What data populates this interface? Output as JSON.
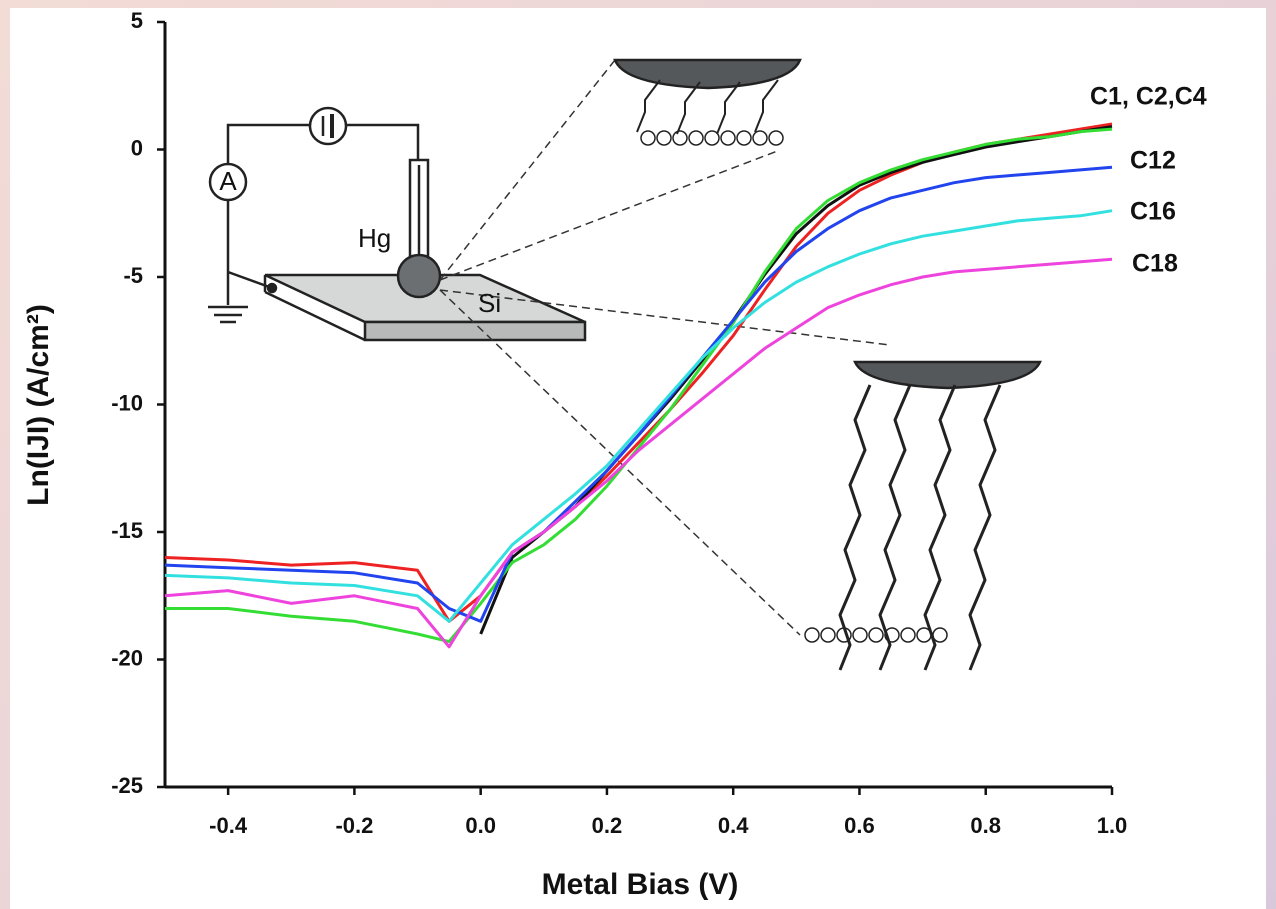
{
  "chart_data": {
    "type": "line",
    "x_label": "Metal Bias (V)",
    "y_label": "Ln(IJI) (A/cm²)",
    "x": [
      -0.5,
      -0.4,
      -0.3,
      -0.2,
      -0.1,
      -0.05,
      0,
      0.05,
      0.1,
      0.15,
      0.2,
      0.25,
      0.3,
      0.35,
      0.4,
      0.45,
      0.5,
      0.55,
      0.6,
      0.65,
      0.7,
      0.75,
      0.8,
      0.85,
      0.9,
      0.95,
      1.0
    ],
    "series": [
      {
        "color": "#ee2222",
        "values": [
          -16,
          -16.1,
          -16.3,
          -16.2,
          -16.5,
          -18.5,
          -17.5,
          -15.8,
          -15,
          -14,
          -12.8,
          -11.5,
          -10.2,
          -8.8,
          -7.3,
          -5.5,
          -3.8,
          -2.5,
          -1.6,
          -1,
          -0.5,
          -0.1,
          0.2,
          0.4,
          0.6,
          0.8,
          1.0
        ]
      },
      {
        "color": "#111111",
        "values": [
          null,
          null,
          null,
          null,
          null,
          null,
          -19,
          -16,
          -15,
          -14,
          -12.6,
          -11.2,
          -9.8,
          -8.3,
          -6.7,
          -4.9,
          -3.3,
          -2.2,
          -1.4,
          -0.9,
          -0.5,
          -0.2,
          0.1,
          0.3,
          0.5,
          0.7,
          0.9
        ]
      },
      {
        "color": "#33dd33",
        "values": [
          -18,
          -18,
          -18.3,
          -18.5,
          -19,
          -19.3,
          -17.8,
          -16.2,
          -15.5,
          -14.5,
          -13.2,
          -11.7,
          -10.2,
          -8.5,
          -6.8,
          -4.8,
          -3.1,
          -2,
          -1.3,
          -0.8,
          -0.4,
          -0.1,
          0.2,
          0.4,
          0.5,
          0.7,
          0.8
        ]
      },
      {
        "color": "#2244ee",
        "values": [
          -16.3,
          -16.4,
          -16.5,
          -16.6,
          -17,
          -18,
          -18.5,
          -15.8,
          -15,
          -13.8,
          -12.6,
          -11.2,
          -9.7,
          -8.2,
          -6.7,
          -5.2,
          -4,
          -3.1,
          -2.4,
          -1.9,
          -1.6,
          -1.3,
          -1.1,
          -1,
          -0.9,
          -0.8,
          -0.7
        ]
      },
      {
        "color": "#33e0e0",
        "values": [
          -16.7,
          -16.8,
          -17,
          -17.1,
          -17.5,
          -18.5,
          -17,
          -15.5,
          -14.5,
          -13.5,
          -12.4,
          -11,
          -9.6,
          -8.2,
          -7,
          -6,
          -5.2,
          -4.6,
          -4.1,
          -3.7,
          -3.4,
          -3.2,
          -3,
          -2.8,
          -2.7,
          -2.6,
          -2.4
        ]
      },
      {
        "color": "#ee44dd",
        "values": [
          -17.5,
          -17.3,
          -17.8,
          -17.5,
          -18,
          -19.5,
          -17.5,
          -15.8,
          -15,
          -14,
          -13,
          -11.8,
          -10.8,
          -9.8,
          -8.8,
          -7.8,
          -7,
          -6.2,
          -5.7,
          -5.3,
          -5,
          -4.8,
          -4.7,
          -4.6,
          -4.5,
          -4.4,
          -4.3
        ]
      }
    ],
    "annotations": [
      "C1, C2,C4",
      "C12",
      "C16",
      "C18"
    ],
    "inset_labels": [
      "A",
      "Hg",
      "Si"
    ],
    "xlim": [
      -0.5,
      1.0
    ],
    "ylim": [
      -25,
      5
    ],
    "xticks": [
      -0.4,
      -0.2,
      {
        "value": 0,
        "label": "0.0"
      },
      0.2,
      0.4,
      0.6,
      0.8,
      {
        "value": 1,
        "label": "1.0"
      }
    ],
    "yticks": [
      -25,
      -20,
      -15,
      -10,
      -5,
      0,
      5
    ],
    "grid": false
  }
}
